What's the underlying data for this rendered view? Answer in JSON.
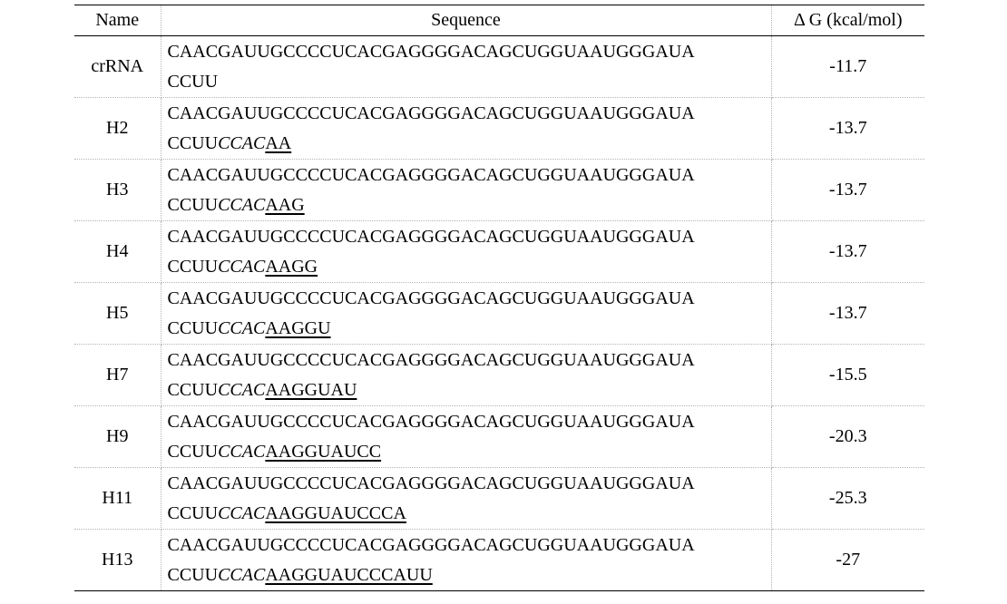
{
  "table": {
    "headers": {
      "name": "Name",
      "sequence": "Sequence",
      "dg": "Δ G (kcal/mol)"
    },
    "rows": [
      {
        "name": "crRNA",
        "line1": "CAACGAUUGCCCCUCACGAGGGGACAGCUGGUAAUGGGAUA",
        "line2_prefix": "CCUU",
        "line2_italic": "",
        "line2_underline": "",
        "dg": "-11.7"
      },
      {
        "name": "H2",
        "line1": "CAACGAUUGCCCCUCACGAGGGGACAGCUGGUAAUGGGAUA",
        "line2_prefix": "CCUU",
        "line2_italic": "CCAC",
        "line2_underline": "AA",
        "dg": "-13.7"
      },
      {
        "name": "H3",
        "line1": "CAACGAUUGCCCCUCACGAGGGGACAGCUGGUAAUGGGAUA",
        "line2_prefix": "CCUU",
        "line2_italic": "CCAC",
        "line2_underline": "AAG",
        "dg": "-13.7"
      },
      {
        "name": "H4",
        "line1": "CAACGAUUGCCCCUCACGAGGGGACAGCUGGUAAUGGGAUA",
        "line2_prefix": "CCUU",
        "line2_italic": "CCAC",
        "line2_underline": "AAGG",
        "dg": "-13.7"
      },
      {
        "name": "H5",
        "line1": "CAACGAUUGCCCCUCACGAGGGGACAGCUGGUAAUGGGAUA",
        "line2_prefix": "CCUU",
        "line2_italic": "CCAC",
        "line2_underline": "AAGGU",
        "dg": "-13.7"
      },
      {
        "name": "H7",
        "line1": "CAACGAUUGCCCCUCACGAGGGGACAGCUGGUAAUGGGAUA",
        "line2_prefix": "CCUU",
        "line2_italic": "CCAC",
        "line2_underline": "AAGGUAU",
        "dg": "-15.5"
      },
      {
        "name": "H9",
        "line1": "CAACGAUUGCCCCUCACGAGGGGACAGCUGGUAAUGGGAUA",
        "line2_prefix": "CCUU",
        "line2_italic": "CCAC",
        "line2_underline": "AAGGUAUCC",
        "dg": "-20.3"
      },
      {
        "name": "H11",
        "line1": "CAACGAUUGCCCCUCACGAGGGGACAGCUGGUAAUGGGAUA",
        "line2_prefix": "CCUU",
        "line2_italic": "CCAC",
        "line2_underline": "AAGGUAUCCCA",
        "dg": "-25.3"
      },
      {
        "name": "H13",
        "line1": "CAACGAUUGCCCCUCACGAGGGGACAGCUGGUAAUGGGAUA",
        "line2_prefix": "CCUU",
        "line2_italic": "CCAC",
        "line2_underline": "AAGGUAUCCCAUU",
        "dg": "-27"
      }
    ]
  }
}
